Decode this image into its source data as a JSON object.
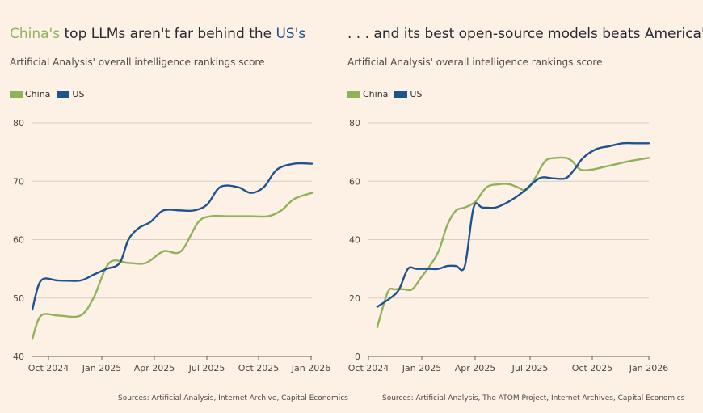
{
  "colors": {
    "china": "#8fb35a",
    "us": "#1f5390",
    "grid": "#d9cdc2",
    "axis": "#66605c",
    "background": "#fdf1e6"
  },
  "chart_data": [
    {
      "type": "line",
      "title_parts": [
        "China's",
        " top LLMs aren't far behind the ",
        "US's"
      ],
      "subtitle": "Artificial Analysis' overall intelligence rankings score",
      "source": "Sources: Artificial Analysis, Internet Archive, Capital Economics",
      "legend": [
        "China",
        "US"
      ],
      "legend_placement": "top-left",
      "xlim": [
        "2024-09-20",
        "2025-01-08"
      ],
      "ylim": [
        40,
        80
      ],
      "yticks": [
        "80",
        "70",
        "60",
        "50",
        "40"
      ],
      "xticks": [
        "Oct 2024",
        "Jan 2025",
        "Apr 2025",
        "Jul 2025",
        "Oct 2025",
        "Jan 2026"
      ],
      "grid": true,
      "series": [
        {
          "name": "China",
          "points": [
            [
              -10,
              43
            ],
            [
              0,
              47
            ],
            [
              20,
              47
            ],
            [
              45,
              47
            ],
            [
              60,
              50
            ],
            [
              78,
              56
            ],
            [
              100,
              56
            ],
            [
              120,
              56
            ],
            [
              140,
              58
            ],
            [
              160,
              58
            ],
            [
              180,
              63
            ],
            [
              195,
              64
            ],
            [
              215,
              64
            ],
            [
              240,
              64
            ],
            [
              260,
              64
            ],
            [
              275,
              65
            ],
            [
              290,
              67
            ],
            [
              310,
              68
            ]
          ]
        },
        {
          "name": "US",
          "points": [
            [
              -10,
              48
            ],
            [
              0,
              53
            ],
            [
              20,
              53
            ],
            [
              45,
              53
            ],
            [
              60,
              54
            ],
            [
              75,
              55
            ],
            [
              90,
              56
            ],
            [
              100,
              60
            ],
            [
              112,
              62
            ],
            [
              125,
              63
            ],
            [
              140,
              65
            ],
            [
              160,
              65
            ],
            [
              175,
              65
            ],
            [
              190,
              66
            ],
            [
              205,
              69
            ],
            [
              225,
              69
            ],
            [
              240,
              68
            ],
            [
              255,
              69
            ],
            [
              270,
              72
            ],
            [
              290,
              73
            ],
            [
              310,
              73
            ]
          ]
        }
      ]
    },
    {
      "type": "line",
      "title_parts": [
        "",
        ". . . and its best open-source models beats America's",
        ""
      ],
      "subtitle": "Artificial Analysis' overall intelligence rankings score",
      "source": "Sources: Artificial Analysis, The ATOM Project, Internet Archives, Capital Economics",
      "legend": [
        "China",
        "US"
      ],
      "legend_placement": "top-left",
      "ylim": [
        0,
        80
      ],
      "yticks": [
        "80",
        "60",
        "40",
        "20",
        "0"
      ],
      "xticks": [
        "Oct 2024",
        "Jan 2025",
        "Apr 2025",
        "Jul 2025",
        "Oct 2025",
        "Jan 2026"
      ],
      "grid": true,
      "series": [
        {
          "name": "China",
          "points": [
            [
              0,
              10
            ],
            [
              12,
              22
            ],
            [
              20,
              23
            ],
            [
              30,
              23
            ],
            [
              40,
              23
            ],
            [
              50,
              27
            ],
            [
              60,
              31
            ],
            [
              70,
              36
            ],
            [
              80,
              45
            ],
            [
              90,
              50
            ],
            [
              100,
              51
            ],
            [
              112,
              53
            ],
            [
              125,
              58
            ],
            [
              140,
              59
            ],
            [
              150,
              59
            ],
            [
              160,
              58
            ],
            [
              170,
              57
            ],
            [
              180,
              61
            ],
            [
              192,
              67
            ],
            [
              205,
              68
            ],
            [
              215,
              68
            ],
            [
              222,
              67
            ],
            [
              232,
              64
            ],
            [
              245,
              64
            ],
            [
              260,
              65
            ],
            [
              275,
              66
            ],
            [
              290,
              67
            ],
            [
              310,
              68
            ]
          ]
        },
        {
          "name": "US",
          "points": [
            [
              0,
              17
            ],
            [
              15,
              20
            ],
            [
              25,
              23
            ],
            [
              35,
              30
            ],
            [
              45,
              30
            ],
            [
              60,
              30
            ],
            [
              70,
              30
            ],
            [
              80,
              31
            ],
            [
              90,
              31
            ],
            [
              100,
              31
            ],
            [
              110,
              51
            ],
            [
              120,
              51
            ],
            [
              135,
              51
            ],
            [
              150,
              53
            ],
            [
              165,
              56
            ],
            [
              185,
              61
            ],
            [
              200,
              61
            ],
            [
              215,
              61
            ],
            [
              225,
              64
            ],
            [
              235,
              68
            ],
            [
              250,
              71
            ],
            [
              265,
              72
            ],
            [
              280,
              73
            ],
            [
              295,
              73
            ],
            [
              310,
              73
            ]
          ]
        }
      ]
    }
  ],
  "left": {
    "title_china": "China's",
    "title_mid": " top LLMs aren't far behind the ",
    "title_us": "US's",
    "subtitle": "Artificial Analysis' overall intelligence rankings score",
    "legend_china": "China",
    "legend_us": "US",
    "source": "Sources: Artificial Analysis, Internet Archive, Capital Economics"
  },
  "right": {
    "title": ". . . and its best open-source models beats America's",
    "subtitle": "Artificial Analysis' overall intelligence rankings score",
    "legend_china": "China",
    "legend_us": "US",
    "source": "Sources: Artificial Analysis, The ATOM Project, Internet Archives, Capital Economics"
  }
}
